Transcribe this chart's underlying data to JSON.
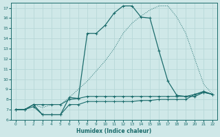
{
  "xlabel": "Humidex (Indice chaleur)",
  "xlim": [
    -0.5,
    22.5
  ],
  "ylim": [
    6,
    17.5
  ],
  "yticks": [
    6,
    7,
    8,
    9,
    10,
    11,
    12,
    13,
    14,
    15,
    16,
    17
  ],
  "xticks": [
    0,
    1,
    2,
    3,
    4,
    5,
    6,
    7,
    8,
    9,
    10,
    11,
    12,
    13,
    14,
    15,
    16,
    17,
    18,
    19,
    20,
    21,
    22
  ],
  "bg_color": "#cfe8e8",
  "line_color": "#1a6b6b",
  "grid_color": "#b8d8d8",
  "curve_main_x": [
    0,
    1,
    2,
    3,
    4,
    5,
    6,
    7,
    8,
    9,
    10,
    11,
    12,
    13,
    14,
    15,
    16,
    17,
    18,
    19,
    20,
    21,
    22
  ],
  "curve_main_y": [
    7.0,
    7.0,
    7.5,
    6.5,
    6.5,
    6.5,
    8.2,
    8.1,
    14.5,
    14.5,
    15.3,
    16.5,
    17.2,
    17.2,
    16.1,
    16.0,
    12.8,
    9.8,
    8.4,
    8.3,
    8.3,
    8.7,
    8.5
  ],
  "curve_dot_x": [
    0,
    1,
    2,
    3,
    4,
    5,
    6,
    7,
    8,
    9,
    10,
    11,
    12,
    13,
    14,
    15,
    16,
    17,
    18,
    19,
    20,
    21,
    22
  ],
  "curve_dot_y": [
    7.0,
    7.0,
    7.5,
    7.2,
    7.5,
    7.5,
    8.2,
    9.0,
    9.8,
    10.8,
    11.8,
    13.0,
    14.5,
    15.5,
    16.2,
    16.8,
    17.2,
    17.2,
    16.1,
    14.5,
    12.0,
    9.5,
    8.5
  ],
  "curve_flat1_x": [
    0,
    1,
    2,
    3,
    4,
    5,
    6,
    7,
    8,
    9,
    10,
    11,
    12,
    13,
    14,
    15,
    16,
    17,
    18,
    19,
    20,
    21,
    22
  ],
  "curve_flat1_y": [
    7.0,
    7.0,
    7.3,
    6.5,
    6.5,
    6.5,
    7.5,
    7.5,
    7.8,
    7.8,
    7.8,
    7.8,
    7.8,
    7.8,
    7.9,
    7.9,
    8.0,
    8.0,
    8.0,
    8.0,
    8.5,
    8.7,
    8.5
  ],
  "curve_flat2_x": [
    0,
    1,
    2,
    3,
    4,
    5,
    6,
    7,
    8,
    9,
    10,
    11,
    12,
    13,
    14,
    15,
    16,
    17,
    18,
    19,
    20,
    21,
    22
  ],
  "curve_flat2_y": [
    7.0,
    7.0,
    7.5,
    7.5,
    7.5,
    7.5,
    8.0,
    8.1,
    8.3,
    8.3,
    8.3,
    8.3,
    8.3,
    8.3,
    8.3,
    8.3,
    8.3,
    8.3,
    8.3,
    8.3,
    8.5,
    8.8,
    8.5
  ]
}
